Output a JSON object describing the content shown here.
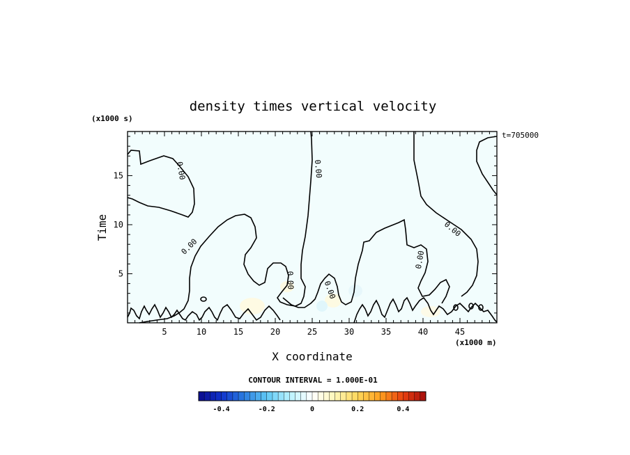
{
  "chart_data": {
    "type": "heatmap",
    "title": "density times vertical velocity",
    "xlabel": "X coordinate",
    "ylabel": "Time",
    "x_unit_label": "(x1000 m)",
    "y_unit_label": "(x1000 s)",
    "time_label": "t=705000",
    "xlim": [
      0,
      50
    ],
    "ylim": [
      0,
      19.5
    ],
    "x_ticks": [
      5,
      10,
      15,
      20,
      25,
      30,
      35,
      40,
      45
    ],
    "y_ticks": [
      5,
      10,
      15
    ],
    "contour_level_label": "0.00",
    "contour_interval_text": "CONTOUR INTERVAL = 1.000E-01",
    "colorbar": {
      "range": [
        -0.5,
        0.5
      ],
      "tick_values": [
        -0.4,
        -0.2,
        0,
        0.2,
        0.4
      ],
      "tick_labels": [
        "-0.4",
        "-0.2",
        "0",
        "0.2",
        "0.4"
      ],
      "colors": [
        "#0a0a8c",
        "#1133cc",
        "#2b7de0",
        "#5fc8f5",
        "#b8f2ff",
        "#ffffff",
        "#fff7b8",
        "#ffd75a",
        "#ffa020",
        "#e84010",
        "#a50d0d"
      ]
    },
    "field_color": "#f2fdfd"
  }
}
